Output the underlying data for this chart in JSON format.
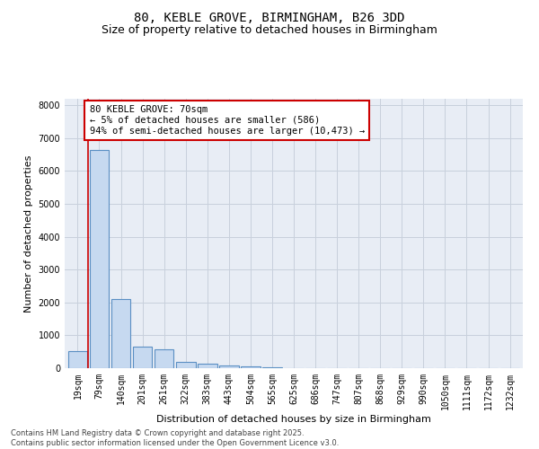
{
  "title_line1": "80, KEBLE GROVE, BIRMINGHAM, B26 3DD",
  "title_line2": "Size of property relative to detached houses in Birmingham",
  "xlabel": "Distribution of detached houses by size in Birmingham",
  "ylabel": "Number of detached properties",
  "categories": [
    "19sqm",
    "79sqm",
    "140sqm",
    "201sqm",
    "261sqm",
    "322sqm",
    "383sqm",
    "443sqm",
    "504sqm",
    "565sqm",
    "625sqm",
    "686sqm",
    "747sqm",
    "807sqm",
    "868sqm",
    "929sqm",
    "990sqm",
    "1050sqm",
    "1111sqm",
    "1172sqm",
    "1232sqm"
  ],
  "values": [
    530,
    6650,
    2100,
    650,
    580,
    200,
    130,
    90,
    50,
    25,
    8,
    3,
    2,
    1,
    1,
    0,
    0,
    0,
    0,
    0,
    0
  ],
  "bar_color": "#c6d9f0",
  "bar_edge_color": "#5a8fc3",
  "bar_edge_width": 0.8,
  "annotation_text": "80 KEBLE GROVE: 70sqm\n← 5% of detached houses are smaller (586)\n94% of semi-detached houses are larger (10,473) →",
  "vline_color": "#cc0000",
  "box_edge_color": "#cc0000",
  "ylim": [
    0,
    8200
  ],
  "yticks": [
    0,
    1000,
    2000,
    3000,
    4000,
    5000,
    6000,
    7000,
    8000
  ],
  "grid_color": "#c8d0dc",
  "bg_color": "#e8edf5",
  "footer_line1": "Contains HM Land Registry data © Crown copyright and database right 2025.",
  "footer_line2": "Contains public sector information licensed under the Open Government Licence v3.0.",
  "title_fontsize": 10,
  "subtitle_fontsize": 9,
  "axis_label_fontsize": 8,
  "tick_fontsize": 7,
  "annotation_fontsize": 7.5,
  "footer_fontsize": 6
}
